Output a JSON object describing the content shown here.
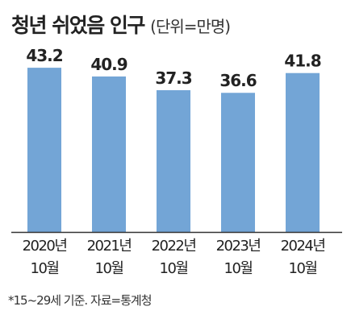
{
  "chart_data": {
    "type": "bar",
    "title": "청년 쉬었음 인구",
    "unit_note": "(단위=만명)",
    "categories": [
      [
        "2020년",
        "10월"
      ],
      [
        "2021년",
        "10월"
      ],
      [
        "2022년",
        "10월"
      ],
      [
        "2023년",
        "10월"
      ],
      [
        "2024년",
        "10월"
      ]
    ],
    "values": [
      43.2,
      40.9,
      37.3,
      36.6,
      41.8
    ],
    "value_labels": [
      "43.2",
      "40.9",
      "37.3",
      "36.6",
      "41.8"
    ],
    "ylim": [
      0,
      50
    ],
    "grid": false,
    "bar_color": "#73a5d6",
    "axis_color": "#333333"
  },
  "footnote": "*15~29세 기준. 자료=통계청"
}
